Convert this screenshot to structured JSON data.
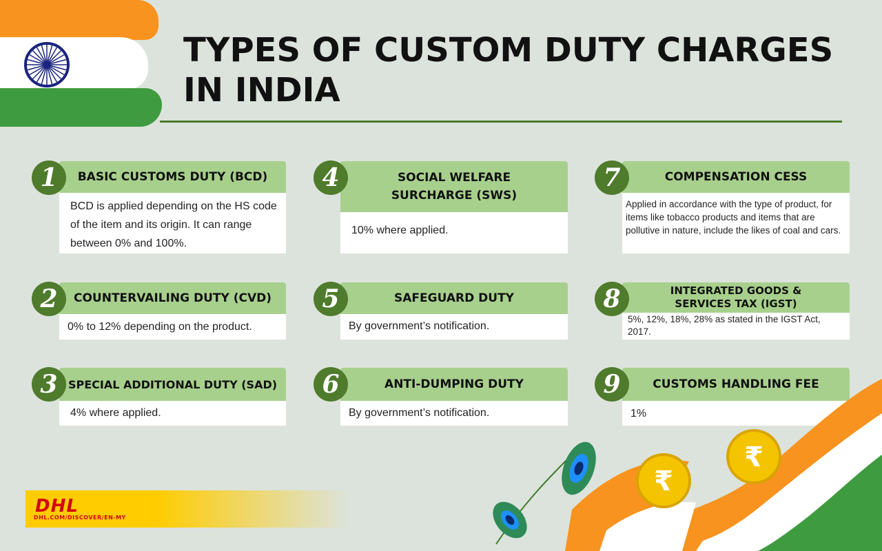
{
  "title": "TYPES OF CUSTOM DUTY CHARGES IN INDIA",
  "items": [
    {
      "num": "1",
      "heading": "BASIC CUSTOMS DUTY (BCD)",
      "desc": "BCD is applied depending on the HS code of the item and its origin. It can range between 0% and 100%."
    },
    {
      "num": "2",
      "heading": "COUNTERVAILING DUTY (CVD)",
      "desc": "0% to 12% depending on the product."
    },
    {
      "num": "3",
      "heading": "SPECIAL ADDITIONAL DUTY (SAD)",
      "desc": "4% where applied."
    },
    {
      "num": "4",
      "heading": "SOCIAL WELFARE SURCHARGE (SWS)",
      "desc": "10% where applied."
    },
    {
      "num": "5",
      "heading": "SAFEGUARD DUTY",
      "desc": "By government’s notification."
    },
    {
      "num": "6",
      "heading": "ANTI-DUMPING DUTY",
      "desc": "By government’s notification."
    },
    {
      "num": "7",
      "heading": "COMPENSATION CESS",
      "desc": "Applied in accordance with the type of product, for items like tobacco products and items that are pollutive in nature, include the likes of coal and cars."
    },
    {
      "num": "8",
      "heading": "INTEGRATED GOODS & SERVICES TAX (IGST)",
      "desc": "5%, 12%, 18%, 28% as stated in the IGST Act, 2017."
    },
    {
      "num": "9",
      "heading": "CUSTOMS HANDLING FEE",
      "desc": "1%"
    }
  ],
  "logo": {
    "brand": "DHL",
    "url": "DHL.COM/DISCOVER/EN-MY"
  },
  "colors": {
    "accent": "#4f7b2c",
    "header_bg": "#a8d08d",
    "saffron": "#f7931e",
    "green": "#3f9b3f",
    "dhl_yellow": "#ffcc00",
    "dhl_red": "#d40511"
  }
}
